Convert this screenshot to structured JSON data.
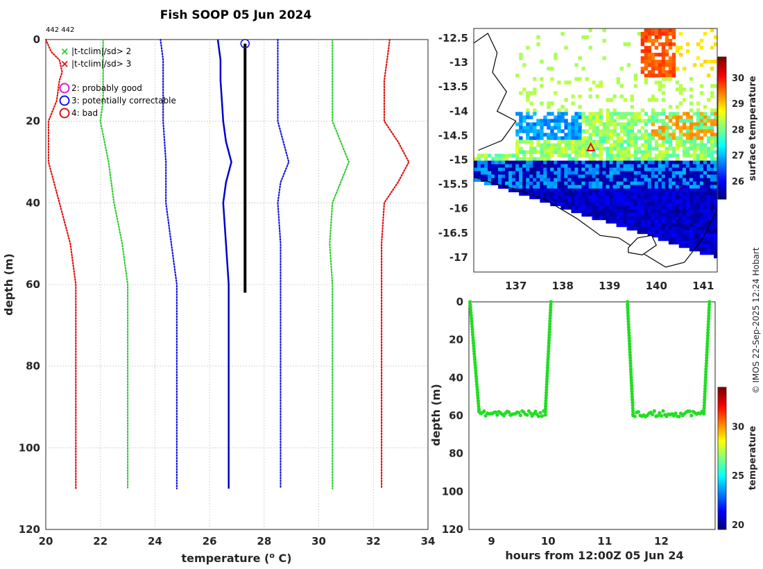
{
  "title": "Fish SOOP 05 Jun 2024",
  "counts": "442 442",
  "credit": "© IMOS 22-Sep-2025 12:24 Hobart",
  "colors": {
    "clim2": "#2ecc2e",
    "clim3": "#e01010",
    "qc2": "#d020d0",
    "qc3": "#1414e0",
    "qc4": "#e01010",
    "profile": "#0000cc",
    "obs": "#000000",
    "green": "#22dd22"
  },
  "legend": {
    "flag2": "|t-tclim|/sd> 2",
    "flag3": "|t-tclim|/sd> 3",
    "qc2": "2: probably good",
    "qc3": "3: potentially correctable",
    "qc4": "4: bad"
  },
  "chart_data": [
    {
      "type": "line",
      "name": "profile",
      "xlabel": "temperature (°C)",
      "ylabel": "depth (m)",
      "xlim": [
        20,
        34
      ],
      "ylim": [
        120,
        0
      ],
      "xticks": [
        20,
        22,
        24,
        26,
        28,
        30,
        32,
        34
      ],
      "yticks": [
        0,
        20,
        40,
        60,
        80,
        100,
        120
      ],
      "grid": true,
      "series": [
        {
          "name": "clim -3sd",
          "style": "dotted",
          "color": "clim3",
          "points": [
            [
              20,
              0
            ],
            [
              20.2,
              3
            ],
            [
              20.5,
              5
            ],
            [
              20.6,
              8
            ],
            [
              20.5,
              10
            ],
            [
              20.4,
              15
            ],
            [
              20.1,
              20
            ],
            [
              20.1,
              30
            ],
            [
              20.5,
              40
            ],
            [
              20.9,
              50
            ],
            [
              21.1,
              60
            ],
            [
              21.1,
              110
            ]
          ]
        },
        {
          "name": "clim -2sd",
          "style": "dotted",
          "color": "clim2",
          "points": [
            [
              22.1,
              0
            ],
            [
              22.1,
              5
            ],
            [
              22.1,
              10
            ],
            [
              22.1,
              15
            ],
            [
              22,
              20
            ],
            [
              22.3,
              30
            ],
            [
              22.5,
              40
            ],
            [
              22.8,
              50
            ],
            [
              23,
              60
            ],
            [
              23,
              110
            ]
          ]
        },
        {
          "name": "clim -1sd",
          "style": "dotted",
          "color": "qc3",
          "points": [
            [
              24.2,
              0
            ],
            [
              24.3,
              5
            ],
            [
              24.3,
              10
            ],
            [
              24.3,
              15
            ],
            [
              24.3,
              20
            ],
            [
              24.4,
              30
            ],
            [
              24.4,
              40
            ],
            [
              24.6,
              50
            ],
            [
              24.8,
              60
            ],
            [
              24.8,
              110
            ]
          ]
        },
        {
          "name": "mean profile",
          "style": "solid",
          "color": "profile",
          "points": [
            [
              26.3,
              0
            ],
            [
              26.4,
              5
            ],
            [
              26.4,
              10
            ],
            [
              26.45,
              15
            ],
            [
              26.5,
              20
            ],
            [
              26.6,
              25
            ],
            [
              26.8,
              30
            ],
            [
              26.6,
              35
            ],
            [
              26.5,
              40
            ],
            [
              26.6,
              50
            ],
            [
              26.7,
              60
            ],
            [
              26.7,
              110
            ]
          ]
        },
        {
          "name": "observed",
          "style": "solid",
          "color": "obs",
          "points": [
            [
              27.3,
              1
            ],
            [
              27.3,
              10
            ],
            [
              27.3,
              20
            ],
            [
              27.3,
              30
            ],
            [
              27.3,
              40
            ],
            [
              27.3,
              50
            ],
            [
              27.3,
              55
            ],
            [
              27.3,
              62
            ]
          ]
        },
        {
          "name": "clim +1sd",
          "style": "dotted",
          "color": "qc3",
          "points": [
            [
              28.5,
              0
            ],
            [
              28.5,
              5
            ],
            [
              28.5,
              10
            ],
            [
              28.5,
              15
            ],
            [
              28.5,
              20
            ],
            [
              28.9,
              30
            ],
            [
              28.6,
              35
            ],
            [
              28.5,
              40
            ],
            [
              28.6,
              50
            ],
            [
              28.6,
              60
            ],
            [
              28.6,
              110
            ]
          ]
        },
        {
          "name": "clim +2sd",
          "style": "dotted",
          "color": "clim2",
          "points": [
            [
              30.5,
              0
            ],
            [
              30.5,
              5
            ],
            [
              30.5,
              10
            ],
            [
              30.5,
              15
            ],
            [
              30.5,
              20
            ],
            [
              30.8,
              25
            ],
            [
              31.1,
              30
            ],
            [
              30.8,
              35
            ],
            [
              30.5,
              40
            ],
            [
              30.4,
              50
            ],
            [
              30.5,
              60
            ],
            [
              30.5,
              110
            ]
          ]
        },
        {
          "name": "clim +3sd",
          "style": "dotted",
          "color": "clim3",
          "points": [
            [
              32.6,
              0
            ],
            [
              32.5,
              5
            ],
            [
              32.4,
              10
            ],
            [
              32.4,
              15
            ],
            [
              32.4,
              20
            ],
            [
              32.9,
              25
            ],
            [
              33.3,
              30
            ],
            [
              32.9,
              35
            ],
            [
              32.4,
              40
            ],
            [
              32.3,
              50
            ],
            [
              32.3,
              60
            ],
            [
              32.3,
              110
            ]
          ]
        }
      ],
      "marker": {
        "label": "qc3",
        "x": 27.3,
        "y": 1
      }
    },
    {
      "type": "heatmap",
      "name": "map",
      "xlim": [
        136.1,
        141.3
      ],
      "ylim": [
        -17.3,
        -12.3
      ],
      "xticks": [
        137,
        138,
        139,
        140,
        141
      ],
      "yticks": [
        -12.5,
        -13,
        -13.5,
        -14,
        -14.5,
        -15,
        -15.5,
        -16,
        -16.5,
        -17
      ],
      "colorbar_label": "surface temperature",
      "colorbar_ticks": [
        26,
        27,
        28,
        29,
        30
      ],
      "colorbar_range": [
        25.3,
        30.8
      ],
      "marker": {
        "lon": 138.6,
        "lat": -14.75,
        "symbol": "triangle"
      }
    },
    {
      "type": "scatter",
      "name": "depth-time",
      "xlabel": "hours from 12:00Z 05 Jun 24",
      "ylabel": "depth (m)",
      "xlim": [
        8.6,
        12.95
      ],
      "ylim": [
        120,
        0
      ],
      "xticks": [
        9,
        10,
        11,
        12
      ],
      "yticks": [
        0,
        20,
        40,
        60,
        80,
        100,
        120
      ],
      "colorbar_label": "temperature",
      "colorbar_ticks": [
        20,
        25,
        30
      ],
      "colorbar_range": [
        19.5,
        34
      ],
      "segments": [
        {
          "t0": 8.62,
          "t1": 8.78,
          "d0": 0,
          "d1": 58
        },
        {
          "t0": 8.78,
          "t1": 9.95,
          "flat": 59
        },
        {
          "t0": 9.95,
          "t1": 10.05,
          "d0": 58,
          "d1": 0
        },
        {
          "t0": 11.4,
          "t1": 11.5,
          "d0": 0,
          "d1": 59
        },
        {
          "t0": 11.5,
          "t1": 12.75,
          "flat": 59
        },
        {
          "t0": 12.75,
          "t1": 12.85,
          "d0": 59,
          "d1": 0
        }
      ]
    }
  ]
}
